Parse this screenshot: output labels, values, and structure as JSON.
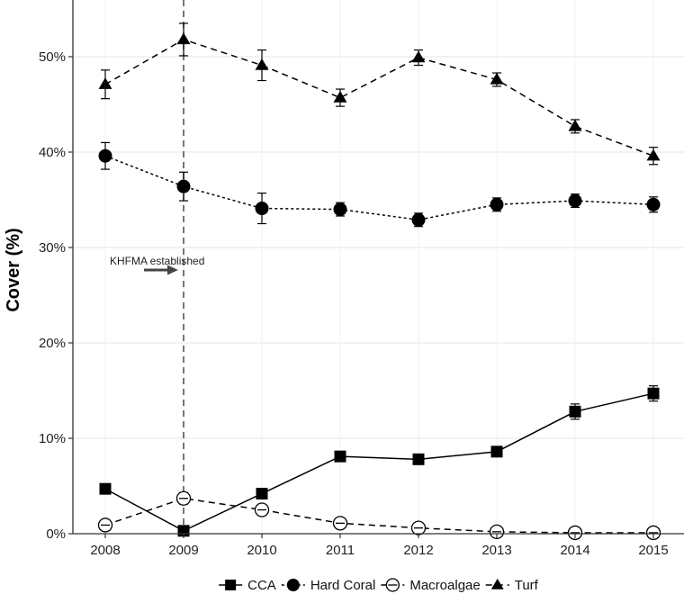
{
  "chart_data": {
    "type": "line",
    "title": "",
    "xlabel": "",
    "ylabel": "Cover (%)",
    "x": [
      2008,
      2009,
      2010,
      2011,
      2012,
      2013,
      2014,
      2015
    ],
    "ylim": [
      0,
      57
    ],
    "yticks": [
      0,
      10,
      20,
      30,
      40,
      50
    ],
    "ytick_labels": [
      "0%",
      "10%",
      "20%",
      "30%",
      "40%",
      "50%"
    ],
    "xtick_labels": [
      "2008",
      "2009",
      "2010",
      "2011",
      "2012",
      "2013",
      "2014",
      "2015"
    ],
    "grid": true,
    "legend_position": "bottom",
    "series": [
      {
        "name": "CCA",
        "marker": "square",
        "line": "solid",
        "values": [
          4.7,
          0.3,
          4.2,
          8.1,
          7.8,
          8.6,
          12.8,
          14.7
        ],
        "err": [
          0.3,
          0.2,
          0.3,
          0.4,
          0.4,
          0.4,
          0.8,
          0.8
        ]
      },
      {
        "name": "Hard Coral",
        "marker": "circle",
        "line": "dotted",
        "values": [
          39.6,
          36.4,
          34.1,
          34.0,
          32.9,
          34.5,
          34.9,
          34.5
        ],
        "err": [
          1.4,
          1.5,
          1.6,
          0.7,
          0.7,
          0.7,
          0.7,
          0.8
        ]
      },
      {
        "name": "Macroalgae",
        "marker": "open-circle",
        "line": "dashed",
        "values": [
          0.9,
          3.7,
          2.5,
          1.1,
          0.6,
          0.2,
          0.1,
          0.1
        ],
        "err": [
          0.2,
          0.6,
          0.5,
          0.2,
          0.1,
          0.05,
          0.05,
          0.05
        ]
      },
      {
        "name": "Turf",
        "marker": "triangle",
        "line": "dashed",
        "values": [
          47.1,
          51.8,
          49.1,
          45.7,
          49.9,
          47.6,
          42.7,
          39.6
        ],
        "err": [
          1.5,
          1.7,
          1.6,
          0.9,
          0.8,
          0.7,
          0.7,
          0.9
        ]
      }
    ],
    "annotations": [
      {
        "text": "KHFMA established",
        "x": 2009,
        "style": "vertical-dashed-line-with-arrow"
      }
    ]
  }
}
